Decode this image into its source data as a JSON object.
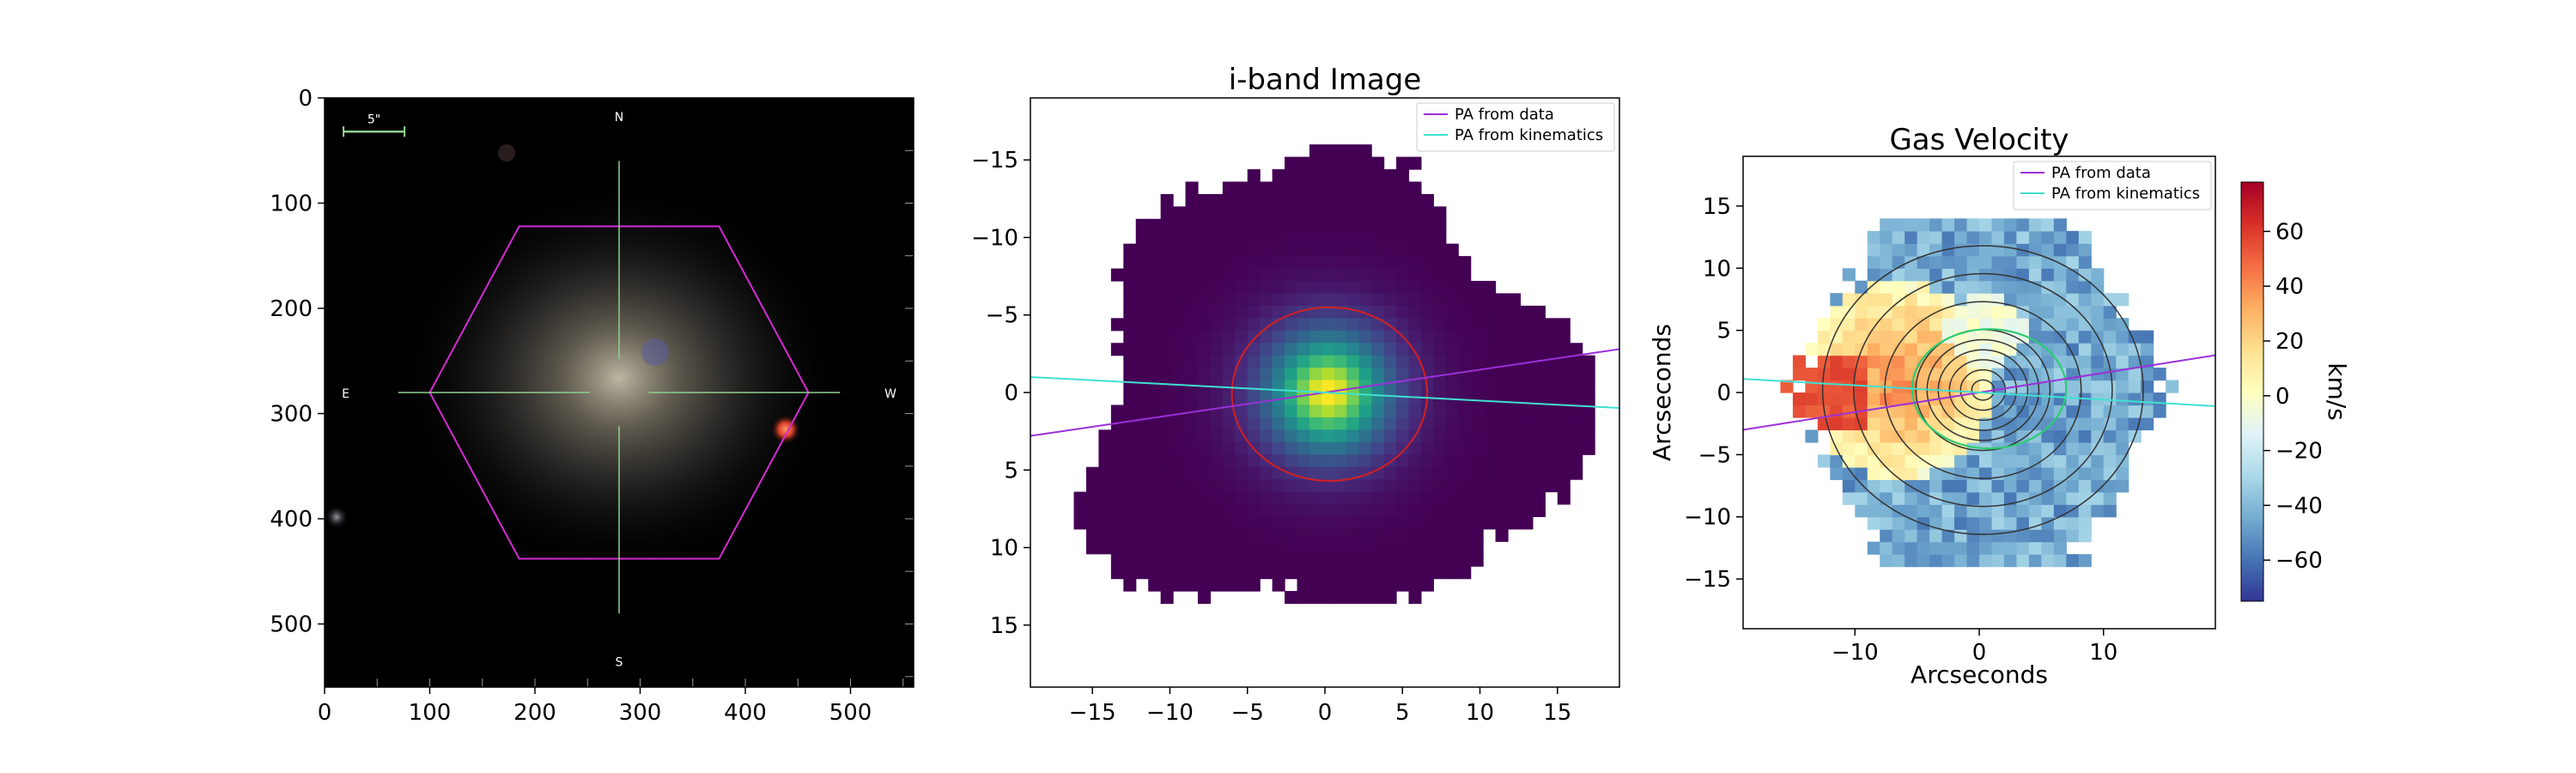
{
  "chart_data": [
    {
      "type": "image",
      "title": "",
      "xlabel": "",
      "ylabel": "",
      "xlim": [
        0,
        560
      ],
      "ylim": [
        560,
        0
      ],
      "xticks": [
        0,
        100,
        200,
        300,
        400,
        500
      ],
      "yticks": [
        0,
        100,
        200,
        300,
        400,
        500
      ],
      "compass": {
        "north": "N",
        "south": "S",
        "east": "E",
        "west": "W"
      },
      "scale_bar_label": "5\"",
      "hexagon_vertices": [
        [
          100,
          280
        ],
        [
          185,
          122
        ],
        [
          375,
          122
        ],
        [
          460,
          280
        ],
        [
          375,
          438
        ],
        [
          185,
          438
        ]
      ],
      "crosshair_center": [
        280,
        280
      ],
      "colors": {
        "background": "#000000",
        "hexagon": "#d52ad5",
        "crosshair": "#8fd18f",
        "galaxy": "#8a8372"
      }
    },
    {
      "type": "heatmap",
      "title": "i-band Image",
      "xlabel": "",
      "ylabel": "",
      "xlim": [
        -19,
        19
      ],
      "ylim": [
        19,
        -19
      ],
      "xticks": [
        -15,
        -10,
        -5,
        0,
        5,
        10,
        15
      ],
      "yticks": [
        -15,
        -10,
        -5,
        0,
        5,
        10,
        15
      ],
      "colormap": "viridis",
      "legend": {
        "position": "upper right",
        "entries": [
          "PA from data",
          "PA from kinematics"
        ]
      },
      "lines": [
        {
          "name": "PA from data",
          "color": "#9b30d9",
          "points": [
            [
              -19,
              2.8
            ],
            [
              19,
              -2.8
            ]
          ]
        },
        {
          "name": "PA from kinematics",
          "color": "#40e0d0",
          "points": [
            [
              -19,
              -1.0
            ],
            [
              19,
              1.0
            ]
          ]
        }
      ],
      "ellipse": {
        "color": "#d42020",
        "center": [
          0.3,
          0.1
        ],
        "semi_axes": [
          6.3,
          5.6
        ]
      }
    },
    {
      "type": "heatmap",
      "title": "Gas Velocity",
      "xlabel": "Arcseconds",
      "ylabel": "Arcseconds",
      "xlim": [
        -19,
        19
      ],
      "ylim": [
        -19,
        19
      ],
      "xticks": [
        -10,
        0,
        10
      ],
      "yticks": [
        15,
        10,
        5,
        0,
        -5,
        -10,
        -15
      ],
      "colormap": "RdYlBu_r",
      "colorbar": {
        "label": "km/s",
        "range": [
          -75,
          78
        ],
        "ticks": [
          60,
          40,
          20,
          0,
          -20,
          -40,
          -60
        ]
      },
      "legend": {
        "position": "upper right",
        "entries": [
          "PA from data",
          "PA from kinematics"
        ]
      },
      "lines": [
        {
          "name": "PA from data",
          "color": "#9b30d9",
          "points": [
            [
              -19,
              -3.0
            ],
            [
              19,
              3.0
            ]
          ]
        },
        {
          "name": "PA from kinematics",
          "color": "#40e0d0",
          "points": [
            [
              -19,
              1.1
            ],
            [
              19,
              -1.1
            ]
          ]
        }
      ],
      "contours": {
        "color": "#333333",
        "levels": 9
      },
      "highlight_contour": {
        "color": "#2ecc71"
      }
    }
  ]
}
